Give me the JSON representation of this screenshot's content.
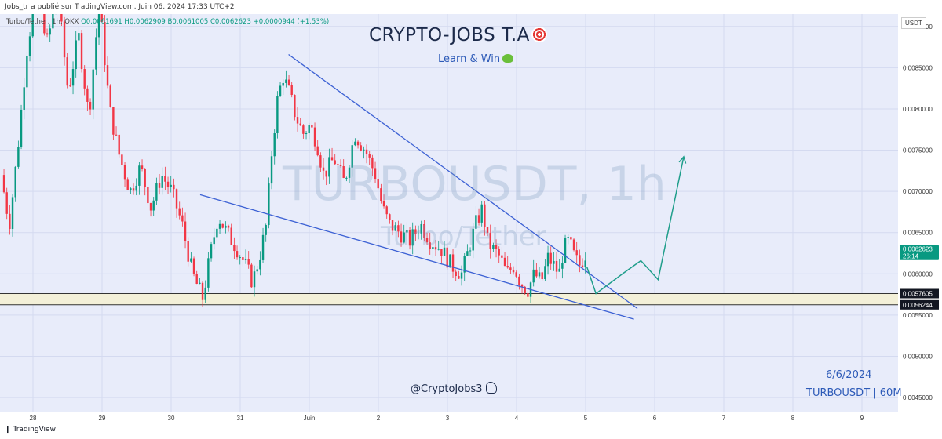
{
  "publisher": "Jobs_tr a publié sur TradingView.com, Juin 06, 2024 17:33 UTC+2",
  "footer_brand": "TradingView",
  "legend": {
    "symbol": "Turbo/Tether, 1h, OKX",
    "open": "O0,0061691",
    "high": "H0,0062909",
    "low": "B0,0061005",
    "close": "C0,0062623",
    "change": "+0,0000944 (+1,53%)"
  },
  "currency": "USDT",
  "overlay": {
    "title": "CRYPTO-JOBS T.A",
    "subtitle": "Learn & Win",
    "watermark_symbol": "TURBOUSDT, 1h",
    "watermark_name": "Turbo/Tether",
    "handle": "@CryptoJobs3",
    "date_note": "6/6/2024",
    "pair_note": "TURBOUSDT | 60M"
  },
  "colors": {
    "background": "#e8ecfa",
    "up": "#089981",
    "down": "#f23645",
    "trendline": "#3c61d4",
    "projection": "#1f9e8b",
    "support_zone": "#f3f0d8",
    "price_tag": "#089981"
  },
  "chart_data": {
    "type": "candlestick",
    "title": "",
    "symbol": "TURBOUSDT",
    "timeframe": "1h",
    "x_ticks": [
      "28",
      "29",
      "30",
      "31",
      "Juin",
      "2",
      "3",
      "4",
      "5",
      "6",
      "7",
      "8",
      "9"
    ],
    "y_ticks": [
      "0,0090000",
      "0,0085000",
      "0,0080000",
      "0,0075000",
      "0,0070000",
      "0,0065000",
      "0,0060000",
      "0,0055000",
      "0,0050000",
      "0,0045000"
    ],
    "y_tick_values": [
      0.009,
      0.0085,
      0.008,
      0.0075,
      0.007,
      0.0065,
      0.006,
      0.0055,
      0.005,
      0.0045
    ],
    "y_range": [
      0.00432,
      0.00915
    ],
    "x_range_days": [
      -0.42,
      6.58
    ],
    "current_price": {
      "label": "0,0062623",
      "countdown": "26:14",
      "value": 0.0062623
    },
    "support_zone": {
      "top_label": "0,0057605",
      "top": 0.0057605,
      "bottom_label": "0,0056244",
      "bottom": 0.0056244
    },
    "price_path": [
      [
        -0.42,
        0.0072
      ],
      [
        -0.3,
        0.0066
      ],
      [
        -0.18,
        0.0075
      ],
      [
        -0.05,
        0.0087
      ],
      [
        0.1,
        0.0095
      ],
      [
        0.25,
        0.0088
      ],
      [
        0.4,
        0.0094
      ],
      [
        0.55,
        0.0082
      ],
      [
        0.7,
        0.0089
      ],
      [
        0.85,
        0.0079
      ],
      [
        1.0,
        0.0093
      ],
      [
        1.15,
        0.008
      ],
      [
        1.3,
        0.0074
      ],
      [
        1.45,
        0.007
      ],
      [
        1.6,
        0.0073
      ],
      [
        1.75,
        0.0068
      ],
      [
        1.9,
        0.0072
      ],
      [
        2.05,
        0.007
      ],
      [
        2.2,
        0.0066
      ],
      [
        2.35,
        0.006
      ],
      [
        2.5,
        0.0057
      ],
      [
        2.6,
        0.0062
      ],
      [
        2.72,
        0.0067
      ],
      [
        2.85,
        0.0065
      ],
      [
        3.0,
        0.0063
      ],
      [
        3.12,
        0.0061
      ],
      [
        3.22,
        0.0059
      ],
      [
        3.32,
        0.0062
      ],
      [
        3.42,
        0.0066
      ],
      [
        3.5,
        0.0075
      ],
      [
        3.58,
        0.0081
      ],
      [
        3.66,
        0.0084
      ],
      [
        3.75,
        0.0082
      ],
      [
        3.85,
        0.0079
      ],
      [
        3.95,
        0.0077
      ],
      [
        4.05,
        0.0078
      ],
      [
        4.15,
        0.0076
      ],
      [
        4.25,
        0.0072
      ],
      [
        4.4,
        0.0074
      ],
      [
        4.55,
        0.0071
      ],
      [
        4.7,
        0.0077
      ],
      [
        4.85,
        0.0075
      ],
      [
        5.0,
        0.0072
      ],
      [
        5.1,
        0.0068
      ],
      [
        5.2,
        0.0066
      ],
      [
        5.35,
        0.0065
      ],
      [
        5.5,
        0.0064
      ],
      [
        5.65,
        0.0066
      ],
      [
        5.8,
        0.0064
      ],
      [
        5.95,
        0.0063
      ],
      [
        6.1,
        0.0061
      ],
      [
        6.25,
        0.006
      ],
      [
        6.35,
        0.0063
      ],
      [
        6.45,
        0.0066
      ],
      [
        6.55,
        0.0068
      ],
      [
        6.62,
        0.0064
      ],
      [
        6.7,
        0.0063
      ],
      [
        6.8,
        0.0062
      ],
      [
        6.9,
        0.006
      ],
      [
        7.0,
        0.0061
      ],
      [
        7.1,
        0.0059
      ],
      [
        7.2,
        0.0058
      ],
      [
        7.3,
        0.006
      ],
      [
        7.4,
        0.0059
      ],
      [
        7.5,
        0.0062
      ],
      [
        7.58,
        0.0061
      ],
      [
        7.66,
        0.006
      ],
      [
        7.72,
        0.0063
      ],
      [
        7.8,
        0.0064
      ],
      [
        7.88,
        0.0062
      ],
      [
        7.95,
        0.0061
      ],
      [
        8.05,
        0.00626
      ]
    ],
    "candles_per_day": 24,
    "trendlines": [
      {
        "name": "upper",
        "from": [
          3.7,
          0.00866
        ],
        "to": [
          8.75,
          0.00558
        ]
      },
      {
        "name": "lower",
        "from": [
          2.42,
          0.00696
        ],
        "to": [
          8.7,
          0.00545
        ]
      }
    ],
    "projection": [
      [
        8.02,
        0.00608
      ],
      [
        8.15,
        0.00576
      ],
      [
        8.55,
        0.00601
      ],
      [
        8.8,
        0.00616
      ],
      [
        9.05,
        0.00593
      ],
      [
        9.42,
        0.00742
      ]
    ]
  }
}
